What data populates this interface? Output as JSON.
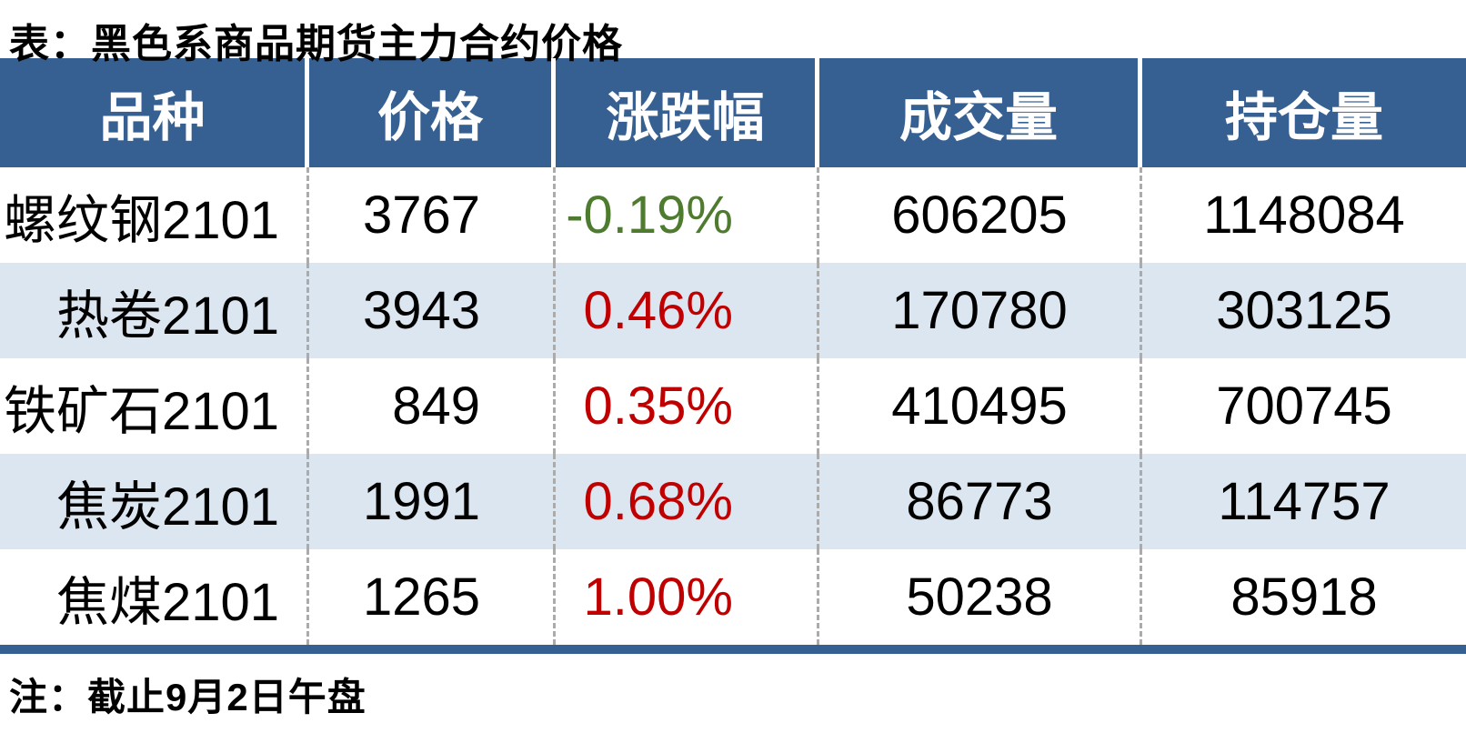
{
  "title": "表：黑色系商品期货主力合约价格",
  "note": "注：截止9月2日午盘",
  "colors": {
    "header_bg": "#366092",
    "alt_row_bg": "#DCE6F1",
    "up_red": "#C00000",
    "down_green": "#4E7B2F",
    "bottom_bar": "#366092",
    "dash_gray": "#ABABAB"
  },
  "table": {
    "columns": [
      "品种",
      "价格",
      "涨跌幅",
      "成交量",
      "持仓量"
    ],
    "rows": [
      {
        "name": "螺纹钢2101",
        "price": "3767",
        "change": "-0.19%",
        "change_direction": "down",
        "volume": "606205",
        "open_interest": "1148084"
      },
      {
        "name": "热卷2101",
        "price": "3943",
        "change": "0.46%",
        "change_direction": "up",
        "volume": "170780",
        "open_interest": "303125"
      },
      {
        "name": "铁矿石2101",
        "price": "849",
        "change": "0.35%",
        "change_direction": "up",
        "volume": "410495",
        "open_interest": "700745"
      },
      {
        "name": "焦炭2101",
        "price": "1991",
        "change": "0.68%",
        "change_direction": "up",
        "volume": "86773",
        "open_interest": "114757"
      },
      {
        "name": "焦煤2101",
        "price": "1265",
        "change": "1.00%",
        "change_direction": "up",
        "volume": "50238",
        "open_interest": "85918"
      }
    ]
  },
  "chart_data": {
    "type": "table",
    "title": "表：黑色系商品期货主力合约价格",
    "note": "注：截止9月2日午盘",
    "columns": [
      "品种",
      "价格",
      "涨跌幅",
      "成交量",
      "持仓量"
    ],
    "rows": [
      [
        "螺纹钢2101",
        3767,
        "-0.19%",
        606205,
        1148084
      ],
      [
        "热卷2101",
        3943,
        "0.46%",
        170780,
        303125
      ],
      [
        "铁矿石2101",
        849,
        "0.35%",
        410495,
        700745
      ],
      [
        "焦炭2101",
        1991,
        "0.68%",
        86773,
        114757
      ],
      [
        "焦煤2101",
        1265,
        "1.00%",
        50238,
        85918
      ]
    ]
  }
}
